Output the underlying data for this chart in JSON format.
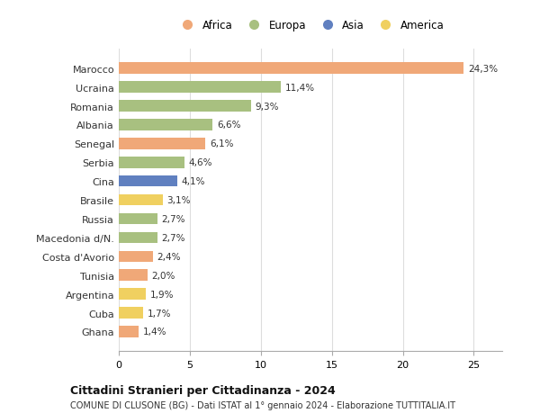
{
  "countries": [
    "Marocco",
    "Ucraina",
    "Romania",
    "Albania",
    "Senegal",
    "Serbia",
    "Cina",
    "Brasile",
    "Russia",
    "Macedonia d/N.",
    "Costa d'Avorio",
    "Tunisia",
    "Argentina",
    "Cuba",
    "Ghana"
  ],
  "values": [
    24.3,
    11.4,
    9.3,
    6.6,
    6.1,
    4.6,
    4.1,
    3.1,
    2.7,
    2.7,
    2.4,
    2.0,
    1.9,
    1.7,
    1.4
  ],
  "labels": [
    "24,3%",
    "11,4%",
    "9,3%",
    "6,6%",
    "6,1%",
    "4,6%",
    "4,1%",
    "3,1%",
    "2,7%",
    "2,7%",
    "2,4%",
    "2,0%",
    "1,9%",
    "1,7%",
    "1,4%"
  ],
  "continents": [
    "Africa",
    "Europa",
    "Europa",
    "Europa",
    "Africa",
    "Europa",
    "Asia",
    "America",
    "Europa",
    "Europa",
    "Africa",
    "Africa",
    "America",
    "America",
    "Africa"
  ],
  "colors": {
    "Africa": "#F0A878",
    "Europa": "#A8C080",
    "Asia": "#6080C0",
    "America": "#F0D060"
  },
  "legend_order": [
    "Africa",
    "Europa",
    "Asia",
    "America"
  ],
  "title_line1": "Cittadini Stranieri per Cittadinanza - 2024",
  "title_line2": "COMUNE DI CLUSONE (BG) - Dati ISTAT al 1° gennaio 2024 - Elaborazione TUTTITALIA.IT",
  "xlim": [
    0,
    27
  ],
  "xticks": [
    0,
    5,
    10,
    15,
    20,
    25
  ],
  "background_color": "#ffffff",
  "grid_color": "#dddddd",
  "bar_height": 0.6
}
